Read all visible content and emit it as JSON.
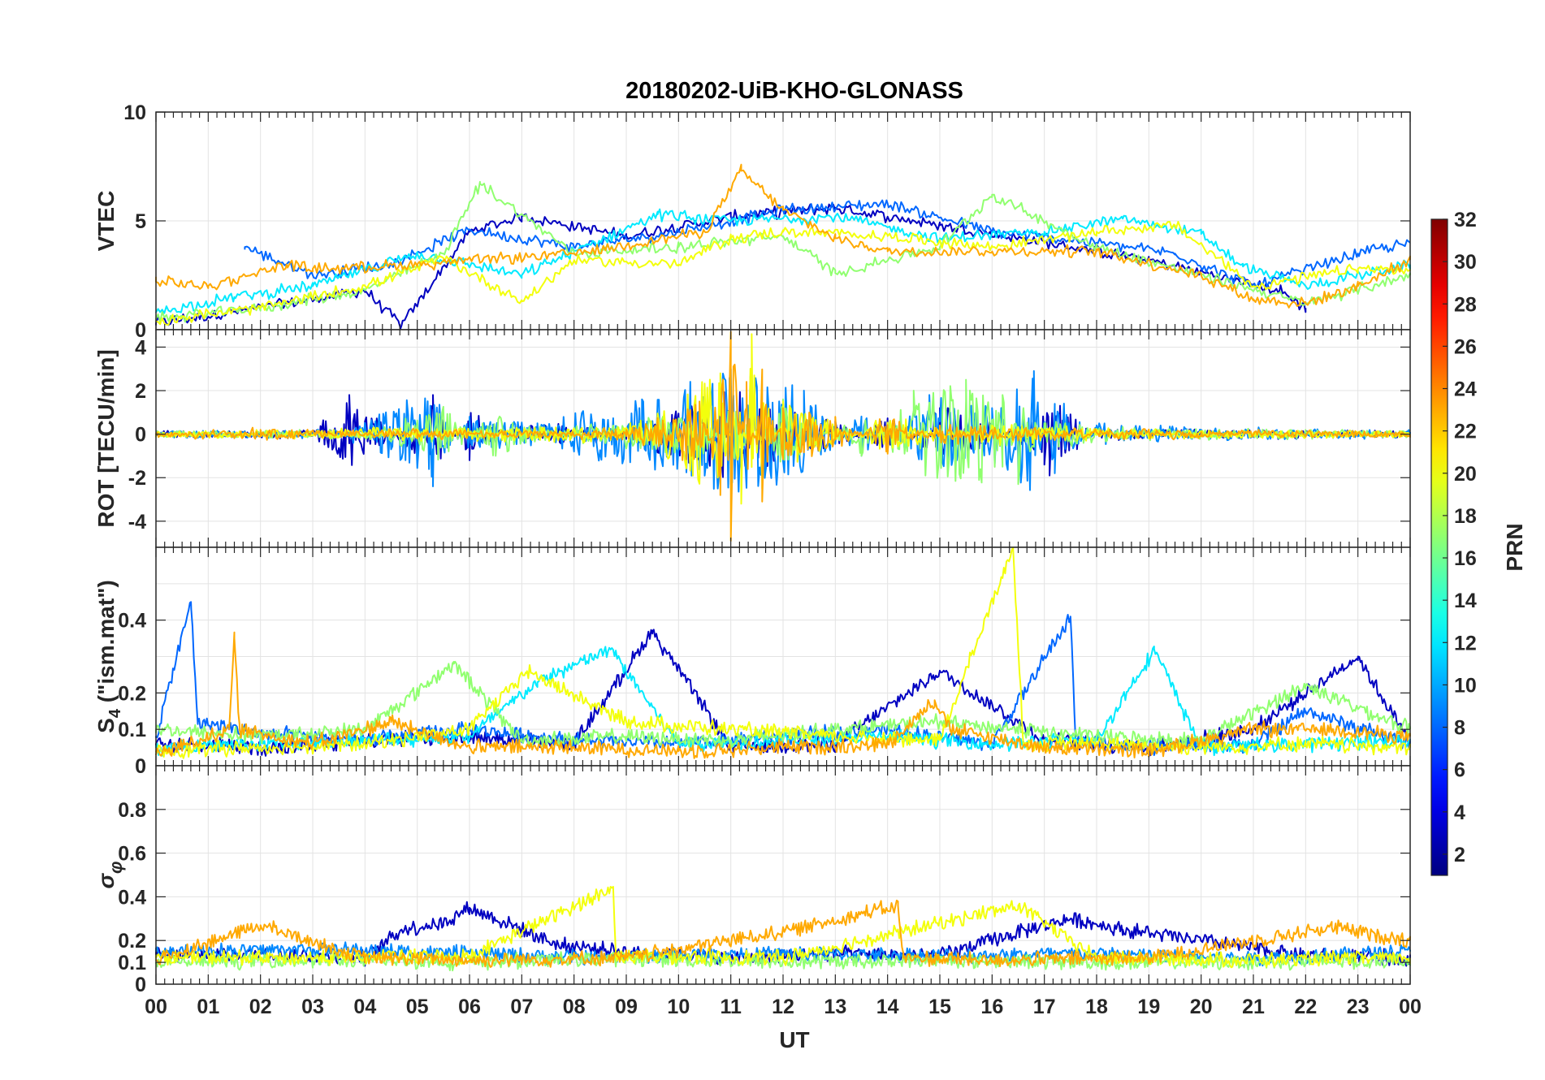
{
  "figure": {
    "title": "20180202-UiB-KHO-GLONASS",
    "xlabel": "UT",
    "x_ticks": [
      "00",
      "01",
      "02",
      "03",
      "04",
      "05",
      "06",
      "07",
      "08",
      "09",
      "10",
      "11",
      "12",
      "13",
      "14",
      "15",
      "16",
      "17",
      "18",
      "19",
      "20",
      "21",
      "22",
      "23",
      "00"
    ]
  },
  "colorbar": {
    "label": "PRN",
    "range": [
      1,
      32
    ],
    "tick_values": [
      2,
      4,
      6,
      8,
      10,
      12,
      14,
      16,
      18,
      20,
      22,
      24,
      26,
      28,
      30,
      32
    ],
    "tick_labels": [
      "2",
      "4",
      "6",
      "8",
      "10",
      "12",
      "14",
      "16",
      "18",
      "20",
      "22",
      "24",
      "26",
      "28",
      "30",
      "32"
    ]
  },
  "chart_data": [
    {
      "type": "line",
      "panel": "vtec",
      "ylabel": "VTEC",
      "ylim": [
        0,
        10
      ],
      "xlim": [
        0,
        24
      ],
      "y_ticks": [
        0,
        5,
        10
      ],
      "y_tick_labels": [
        "0",
        "5",
        "10"
      ],
      "grid": true,
      "description_series": "multiple PRN tracks, roughly 0-3 TECU at night, 3-6 TECU by day, peak about 7.4 TECU near 11-15 UT",
      "series": [
        {
          "name": "PRN 3",
          "prn": 3,
          "x": [
            0,
            2,
            4,
            4.7,
            6,
            7,
            9,
            11,
            13,
            15,
            17,
            19,
            21.5,
            22
          ],
          "y": [
            0.3,
            1.0,
            1.8,
            0.2,
            4.5,
            5.2,
            4.3,
            5.2,
            5.6,
            4.8,
            4.0,
            3.2,
            1.8,
            1.0
          ]
        },
        {
          "name": "PRN 8",
          "prn": 8,
          "x": [
            1.7,
            3,
            4.5,
            6,
            8,
            10,
            12,
            14,
            16,
            18,
            19.5,
            21,
            23,
            24
          ],
          "y": [
            3.8,
            2.5,
            3.0,
            4.6,
            3.8,
            4.5,
            5.5,
            5.8,
            4.5,
            4.0,
            3.5,
            2.0,
            3.5,
            4.0
          ]
        },
        {
          "name": "PRN 12",
          "prn": 12,
          "x": [
            0,
            1.5,
            3,
            5,
            7,
            9.6,
            11,
            13,
            15,
            17,
            18.5,
            20,
            20.8,
            22,
            24
          ],
          "y": [
            0.8,
            1.5,
            2.0,
            3.5,
            2.5,
            5.3,
            5.0,
            5.2,
            4.2,
            4.5,
            5.1,
            4.4,
            2.9,
            2.0,
            3.0
          ]
        },
        {
          "name": "PRN 17",
          "prn": 17,
          "x": [
            0,
            2,
            4,
            5.5,
            6.2,
            8,
            10,
            12,
            13,
            15,
            16,
            18,
            20,
            22,
            24
          ],
          "y": [
            0.5,
            1.0,
            1.8,
            3.5,
            6.7,
            3.5,
            3.8,
            4.3,
            2.6,
            3.8,
            6.2,
            3.8,
            2.5,
            1.2,
            2.5
          ]
        },
        {
          "name": "PRN 20",
          "prn": 20,
          "x": [
            0,
            2,
            4,
            5.5,
            7,
            8,
            10,
            11,
            12,
            14,
            16,
            18,
            19.5,
            21,
            23,
            24
          ],
          "y": [
            0.4,
            1.0,
            2.0,
            3.3,
            1.3,
            3.2,
            3.0,
            4.2,
            4.5,
            4.3,
            3.8,
            4.5,
            4.8,
            2.0,
            2.8,
            2.7
          ]
        },
        {
          "name": "PRN 23",
          "prn": 23,
          "x": [
            0,
            1,
            2.5,
            3,
            5,
            8,
            10.5,
            11.2,
            12,
            13,
            14,
            16,
            18,
            20,
            21,
            22,
            23,
            24
          ],
          "y": [
            2.2,
            2.0,
            3.0,
            2.8,
            3.0,
            3.5,
            4.5,
            7.3,
            5.5,
            4.2,
            3.6,
            3.6,
            3.6,
            2.5,
            1.4,
            1.2,
            2.0,
            3.2
          ]
        }
      ]
    },
    {
      "type": "line",
      "panel": "rot",
      "ylabel": "ROT [TECU/min]",
      "ylim": [
        -5.2,
        4.8
      ],
      "xlim": [
        0,
        24
      ],
      "y_ticks": [
        -4,
        -2,
        0,
        2,
        4
      ],
      "y_tick_labels": [
        "-4",
        "-2",
        "0",
        "2",
        "4"
      ],
      "grid": true,
      "description_series": "fluctuations around 0; strongest activity 10.5-12 UT reaching about +4.5 and -4.9 TECU/min",
      "series": [
        {
          "name": "PRN 3",
          "prn": 3,
          "x": [
            0,
            3,
            3.7,
            5,
            5.3,
            6,
            7,
            9,
            11,
            12,
            13,
            14,
            15,
            16,
            17,
            17.1,
            18,
            20,
            22,
            24
          ],
          "y": [
            0,
            0.1,
            1.8,
            -1.0,
            1.8,
            -1.2,
            0.4,
            0.2,
            2.2,
            1.0,
            0.6,
            -0.8,
            1.2,
            0.5,
            -1.4,
            -1.9,
            0.2,
            0.1,
            0.1,
            0
          ]
        },
        {
          "name": "PRN 9",
          "prn": 9,
          "x": [
            0,
            3.5,
            5.3,
            6,
            7.3,
            9.3,
            11,
            12.4,
            13.5,
            14.8,
            16,
            16.8,
            17.2,
            18,
            20,
            24
          ],
          "y": [
            0,
            0.1,
            -2.4,
            0.8,
            0.5,
            1.6,
            3.0,
            2.0,
            -1.0,
            1.8,
            1.2,
            2.9,
            -1.8,
            0.4,
            0.2,
            0.1
          ]
        },
        {
          "name": "PRN 17",
          "prn": 17,
          "x": [
            0,
            4,
            5.5,
            6.5,
            8,
            10.5,
            11,
            12,
            13.5,
            14.5,
            15.5,
            16.2,
            16.5,
            17,
            19,
            22,
            24
          ],
          "y": [
            0,
            0.1,
            1.2,
            -1.0,
            0.3,
            1.0,
            -1.5,
            1.6,
            -1.0,
            2.0,
            2.5,
            1.8,
            -2.3,
            0.5,
            0.2,
            0.1,
            0
          ]
        },
        {
          "name": "PRN 20",
          "prn": 20,
          "x": [
            0,
            5,
            9,
            10.8,
            11.2,
            11.4,
            11.6,
            12,
            13,
            14,
            16,
            18,
            20,
            24
          ],
          "y": [
            0,
            0.2,
            0.3,
            2.8,
            -3.2,
            4.6,
            -2.5,
            1.5,
            0.5,
            -0.8,
            0.4,
            0.2,
            0.1,
            0
          ]
        },
        {
          "name": "PRN 23",
          "prn": 23,
          "x": [
            0,
            2,
            5,
            9,
            10.4,
            10.8,
            11,
            11.3,
            11.6,
            12,
            13,
            14,
            15,
            17,
            20,
            24
          ],
          "y": [
            0,
            0.2,
            -0.2,
            0.2,
            1.5,
            -2.8,
            -4.9,
            2.4,
            -3.1,
            1.2,
            0.8,
            -0.9,
            0.4,
            0.2,
            0.1,
            0
          ]
        }
      ]
    },
    {
      "type": "line",
      "panel": "s4",
      "ylabel": "S4 (\"ism.mat\")",
      "ylim": [
        0,
        0.6
      ],
      "xlim": [
        0,
        24
      ],
      "y_ticks": [
        0,
        0.1,
        0.2,
        0.4
      ],
      "y_tick_labels": [
        "0",
        "0.1",
        "0.2",
        "0.4"
      ],
      "grid": true,
      "description_series": "background about 0.05-0.1 with spikes up to 0.45 (00:40), 0.37 (09:30), 0.6 (16:30), 0.41 (17:30)",
      "series": [
        {
          "name": "PRN 3",
          "prn": 3,
          "x": [
            0,
            2,
            4,
            6,
            8,
            9.5,
            11,
            13,
            15,
            17,
            19,
            21,
            23,
            24
          ],
          "y": [
            0.06,
            0.05,
            0.07,
            0.08,
            0.06,
            0.37,
            0.05,
            0.06,
            0.26,
            0.07,
            0.05,
            0.1,
            0.3,
            0.06
          ]
        },
        {
          "name": "PRN 8",
          "prn": 8,
          "x": [
            0,
            0.67,
            0.8,
            2,
            4,
            6,
            8,
            10,
            12,
            14,
            16,
            17.5,
            17.6,
            19,
            21,
            22,
            24
          ],
          "y": [
            0.08,
            0.45,
            0.12,
            0.09,
            0.07,
            0.1,
            0.07,
            0.06,
            0.08,
            0.1,
            0.06,
            0.41,
            0.07,
            0.05,
            0.06,
            0.15,
            0.06
          ]
        },
        {
          "name": "PRN 12",
          "prn": 12,
          "x": [
            0,
            2,
            4,
            6,
            7.3,
            8.7,
            10,
            12,
            14,
            16,
            18,
            19.1,
            20,
            22,
            24
          ],
          "y": [
            0.05,
            0.06,
            0.07,
            0.08,
            0.23,
            0.32,
            0.06,
            0.07,
            0.08,
            0.06,
            0.07,
            0.32,
            0.05,
            0.06,
            0.07
          ]
        },
        {
          "name": "PRN 17",
          "prn": 17,
          "x": [
            0,
            2,
            4,
            5.7,
            7,
            9,
            11,
            13,
            15,
            16.5,
            18,
            20,
            22,
            24
          ],
          "y": [
            0.1,
            0.08,
            0.1,
            0.28,
            0.07,
            0.08,
            0.07,
            0.1,
            0.12,
            0.1,
            0.08,
            0.07,
            0.22,
            0.1
          ]
        },
        {
          "name": "PRN 20",
          "prn": 20,
          "x": [
            0,
            2,
            4,
            6,
            7.1,
            9,
            11,
            13,
            15,
            16.4,
            16.6,
            18,
            20,
            22,
            24
          ],
          "y": [
            0.04,
            0.05,
            0.06,
            0.1,
            0.26,
            0.12,
            0.1,
            0.08,
            0.07,
            0.6,
            0.06,
            0.06,
            0.05,
            0.06,
            0.05
          ]
        },
        {
          "name": "PRN 23",
          "prn": 23,
          "x": [
            0,
            1.4,
            1.5,
            1.6,
            3,
            4.5,
            6,
            8,
            10,
            12,
            14,
            14.9,
            15.2,
            17,
            19,
            21,
            22.5,
            24
          ],
          "y": [
            0.03,
            0.1,
            0.35,
            0.1,
            0.06,
            0.12,
            0.05,
            0.05,
            0.04,
            0.05,
            0.06,
            0.18,
            0.1,
            0.05,
            0.04,
            0.1,
            0.1,
            0.08
          ]
        }
      ]
    },
    {
      "type": "line",
      "panel": "sigma_phi",
      "ylabel": "σφ",
      "ylim": [
        0,
        1
      ],
      "xlim": [
        0,
        24
      ],
      "y_ticks": [
        0,
        0.1,
        0.2,
        0.4,
        0.6,
        0.8
      ],
      "y_tick_labels": [
        "0",
        "0.1",
        "0.2",
        "0.4",
        "0.6",
        "0.8"
      ],
      "grid": true,
      "description_series": "background about 0.1-0.15; elevated about 0.25 for PRN 3 between 04:40-07:40 and 16:40-20:00; spikes 0.44 at 08:45, 0.36 at 14:10",
      "series": [
        {
          "name": "PRN 3",
          "prn": 3,
          "x": [
            0,
            2,
            4,
            4.7,
            5.5,
            6,
            7,
            7.7,
            9,
            11,
            13,
            15,
            16.7,
            17.5,
            18.5,
            20,
            22,
            24
          ],
          "y": [
            0.13,
            0.14,
            0.12,
            0.25,
            0.28,
            0.35,
            0.25,
            0.18,
            0.15,
            0.12,
            0.14,
            0.13,
            0.25,
            0.3,
            0.25,
            0.2,
            0.13,
            0.12
          ]
        },
        {
          "name": "PRN 9",
          "prn": 9,
          "x": [
            0,
            3,
            6,
            8.7,
            9,
            12,
            15,
            18,
            21,
            24
          ],
          "y": [
            0.15,
            0.16,
            0.14,
            0.12,
            0.13,
            0.14,
            0.13,
            0.14,
            0.12,
            0.15
          ]
        },
        {
          "name": "PRN 17",
          "prn": 17,
          "x": [
            0,
            3,
            6,
            9,
            12,
            15,
            18,
            21,
            24
          ],
          "y": [
            0.1,
            0.11,
            0.1,
            0.12,
            0.1,
            0.11,
            0.1,
            0.1,
            0.11
          ]
        },
        {
          "name": "PRN 20",
          "prn": 20,
          "x": [
            0,
            3,
            6,
            8.75,
            8.8,
            12,
            16.5,
            18,
            21,
            24
          ],
          "y": [
            0.12,
            0.12,
            0.13,
            0.44,
            0.13,
            0.12,
            0.36,
            0.12,
            0.11,
            0.12
          ]
        },
        {
          "name": "PRN 23",
          "prn": 23,
          "x": [
            0,
            2,
            4,
            6,
            9,
            12.2,
            14.2,
            14.3,
            16,
            19,
            22.5,
            24
          ],
          "y": [
            0.11,
            0.27,
            0.12,
            0.11,
            0.12,
            0.25,
            0.36,
            0.12,
            0.11,
            0.12,
            0.26,
            0.2
          ]
        }
      ]
    }
  ]
}
